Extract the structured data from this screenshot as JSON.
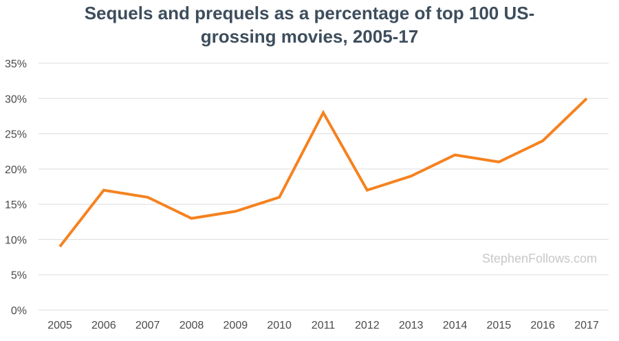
{
  "chart_data": {
    "type": "line",
    "title_lines": [
      "Sequels and prequels as a percentage of top 100 US-",
      "grossing movies, 2005-17"
    ],
    "xlabel": "",
    "ylabel": "",
    "categories": [
      "2005",
      "2006",
      "2007",
      "2008",
      "2009",
      "2010",
      "2011",
      "2012",
      "2013",
      "2014",
      "2015",
      "2016",
      "2017"
    ],
    "series": [
      {
        "name": "Sequels and prequels",
        "values": [
          9,
          17,
          16,
          13,
          14,
          16,
          28,
          17,
          19,
          22,
          21,
          24,
          30
        ]
      }
    ],
    "ylim": [
      0,
      35
    ],
    "yticks": [
      0,
      5,
      10,
      15,
      20,
      25,
      30,
      35
    ],
    "ytick_labels": [
      "0%",
      "5%",
      "10%",
      "15%",
      "20%",
      "25%",
      "30%",
      "35%"
    ],
    "grid": true,
    "line_color": "#f5821f",
    "gridline_color": "#dcdcdc",
    "title_color": "#3d4d5c"
  },
  "watermark": "StephenFollows.com"
}
